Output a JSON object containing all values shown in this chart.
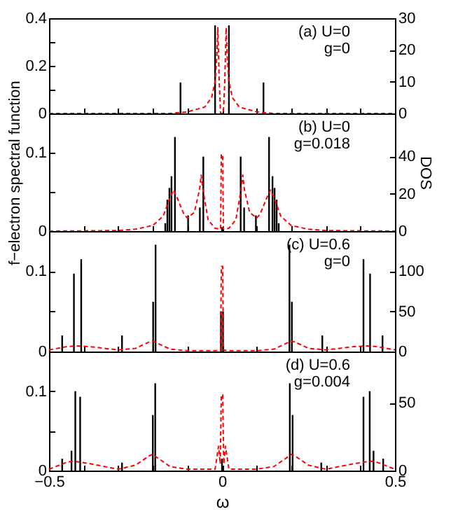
{
  "chart_data": [
    {
      "type": "bar",
      "annotations": [
        "(a) U=0",
        "g=0"
      ],
      "xlim": [
        -0.5,
        0.5
      ],
      "xticks": [
        {
          "value": -0.5,
          "label": null
        },
        {
          "value": -0.4,
          "label": null
        },
        {
          "value": -0.3,
          "label": null
        },
        {
          "value": -0.2,
          "label": null
        },
        {
          "value": -0.1,
          "label": null
        },
        {
          "value": 0,
          "label": null
        },
        {
          "value": 0.1,
          "label": null
        },
        {
          "value": 0.2,
          "label": null
        },
        {
          "value": 0.3,
          "label": null
        },
        {
          "value": 0.4,
          "label": null
        },
        {
          "value": 0.5,
          "label": null
        }
      ],
      "ylim": [
        0,
        0.4
      ],
      "yticks": [
        0,
        {
          "value": 0.1,
          "label": null
        },
        0.2,
        {
          "value": 0.3,
          "label": null
        },
        0.4
      ],
      "y2lim": [
        0,
        30
      ],
      "y2ticks": [
        0,
        10,
        20,
        30
      ],
      "tick_labels": "y",
      "grid": false,
      "series": [
        {
          "type": "bar",
          "color": "#000000",
          "x": [
            -0.12,
            -0.02,
            0.02,
            0.12
          ],
          "values": [
            0.13,
            0.37,
            0.37,
            0.13
          ]
        },
        {
          "type": "line",
          "axis": "y2",
          "color": "#ff0000",
          "line_style": "dashed",
          "x": [
            -0.5,
            -0.15,
            -0.1,
            -0.05,
            -0.03,
            -0.02,
            -0.015,
            -0.012,
            -0.008,
            -0.004,
            0,
            0.004,
            0.008,
            0.012,
            0.015,
            0.02,
            0.03,
            0.05,
            0.1,
            0.15,
            0.5
          ],
          "values": [
            0,
            0,
            0.5,
            2,
            5,
            10,
            18,
            27,
            10,
            0,
            0,
            0,
            10,
            27,
            18,
            10,
            5,
            2,
            0.5,
            0,
            0
          ]
        }
      ]
    },
    {
      "type": "bar",
      "annotations": [
        "(b) U=0",
        "g=0.018"
      ],
      "ylabel": "f−electron spectral function",
      "y2label": "DOS",
      "xlim": [
        -0.5,
        0.5
      ],
      "xticks": [
        {
          "value": -0.5,
          "label": null
        },
        {
          "value": -0.4,
          "label": null
        },
        {
          "value": -0.3,
          "label": null
        },
        {
          "value": -0.2,
          "label": null
        },
        {
          "value": -0.1,
          "label": null
        },
        {
          "value": 0,
          "label": null
        },
        {
          "value": 0.1,
          "label": null
        },
        {
          "value": 0.2,
          "label": null
        },
        {
          "value": 0.3,
          "label": null
        },
        {
          "value": 0.4,
          "label": null
        },
        {
          "value": 0.5,
          "label": null
        }
      ],
      "ylim": [
        0,
        0.15
      ],
      "yticks": [
        0,
        {
          "value": 0.05,
          "label": null
        },
        0.1
      ],
      "y2lim": [
        0,
        63
      ],
      "y2ticks": [
        0,
        20,
        40
      ],
      "tick_labels": "y",
      "grid": false,
      "series": [
        {
          "type": "bar",
          "color": "#000000",
          "x": [
            -0.164,
            -0.158,
            -0.152,
            -0.146,
            -0.136,
            -0.098,
            -0.064,
            -0.054,
            0,
            0.054,
            0.064,
            0.098,
            0.136,
            0.146,
            0.152,
            0.158,
            0.164
          ],
          "values": [
            0.01,
            0.04,
            0.055,
            0.07,
            0.12,
            0.02,
            0.03,
            0.095,
            0.005,
            0.095,
            0.03,
            0.02,
            0.12,
            0.07,
            0.055,
            0.04,
            0.01
          ]
        },
        {
          "type": "line",
          "axis": "y2",
          "color": "#ff0000",
          "line_style": "dashed",
          "x": [
            -0.5,
            -0.3,
            -0.25,
            -0.2,
            -0.17,
            -0.15,
            -0.14,
            -0.13,
            -0.11,
            -0.1,
            -0.08,
            -0.065,
            -0.06,
            -0.055,
            -0.04,
            -0.02,
            -0.004,
            -0.002,
            0.002,
            0.004,
            0.02,
            0.04,
            0.055,
            0.06,
            0.065,
            0.08,
            0.1,
            0.11,
            0.13,
            0.14,
            0.15,
            0.17,
            0.2,
            0.25,
            0.3,
            0.5
          ],
          "values": [
            0,
            0.3,
            1,
            3,
            8,
            18,
            22,
            18,
            9,
            7,
            10,
            22,
            30,
            22,
            6,
            1.5,
            1,
            41,
            41,
            1,
            1.5,
            6,
            22,
            30,
            22,
            10,
            7,
            9,
            18,
            22,
            18,
            8,
            3,
            1,
            0.3,
            0
          ]
        }
      ]
    },
    {
      "type": "bar",
      "annotations": [
        "(c) U=0.6",
        "g=0"
      ],
      "xlim": [
        -0.5,
        0.5
      ],
      "xticks": [
        {
          "value": -0.5,
          "label": null
        },
        {
          "value": -0.4,
          "label": null
        },
        {
          "value": -0.3,
          "label": null
        },
        {
          "value": -0.2,
          "label": null
        },
        {
          "value": -0.1,
          "label": null
        },
        {
          "value": 0,
          "label": null
        },
        {
          "value": 0.1,
          "label": null
        },
        {
          "value": 0.2,
          "label": null
        },
        {
          "value": 0.3,
          "label": null
        },
        {
          "value": 0.4,
          "label": null
        },
        {
          "value": 0.5,
          "label": null
        }
      ],
      "ylim": [
        0,
        0.15
      ],
      "yticks": [
        0,
        {
          "value": 0.05,
          "label": null
        },
        0.1
      ],
      "y2lim": [
        0,
        150
      ],
      "y2ticks": [
        0,
        50,
        100
      ],
      "tick_labels": "y",
      "grid": false,
      "series": [
        {
          "type": "bar",
          "color": "#000000",
          "x": [
            -0.462,
            -0.428,
            -0.407,
            -0.289,
            -0.199,
            -0.192,
            -0.003,
            0.003,
            0.195,
            0.202,
            0.29,
            0.409,
            0.428,
            0.464
          ],
          "values": [
            0.02,
            0.097,
            0.115,
            0.02,
            0.062,
            0.133,
            0.05,
            0.05,
            0.133,
            0.062,
            0.02,
            0.115,
            0.097,
            0.02
          ]
        },
        {
          "type": "line",
          "axis": "y2",
          "color": "#ff0000",
          "line_style": "dashed",
          "x": [
            -0.5,
            -0.45,
            -0.42,
            -0.38,
            -0.3,
            -0.25,
            -0.21,
            -0.2,
            -0.19,
            -0.15,
            -0.1,
            -0.02,
            -0.004,
            -0.002,
            0.002,
            0.004,
            0.02,
            0.1,
            0.15,
            0.19,
            0.2,
            0.21,
            0.25,
            0.3,
            0.38,
            0.42,
            0.45,
            0.5
          ],
          "values": [
            2,
            6,
            7,
            6,
            2,
            4,
            12,
            13,
            11,
            3,
            1,
            1,
            2,
            106,
            106,
            2,
            1,
            1,
            3,
            11,
            13,
            12,
            4,
            2,
            6,
            7,
            6,
            2
          ]
        }
      ]
    },
    {
      "type": "bar",
      "annotations": [
        "(d) U=0.6",
        "g=0.004"
      ],
      "xlabel": "ω",
      "xlim": [
        -0.5,
        0.5
      ],
      "xticks": [
        {
          "value": -0.5,
          "label": "−0.5"
        },
        {
          "value": -0.4,
          "label": null
        },
        {
          "value": -0.3,
          "label": null
        },
        {
          "value": -0.2,
          "label": null
        },
        {
          "value": -0.1,
          "label": null
        },
        0,
        {
          "value": 0.1,
          "label": null
        },
        {
          "value": 0.2,
          "label": null
        },
        {
          "value": 0.3,
          "label": null
        },
        {
          "value": 0.4,
          "label": null
        },
        0.5
      ],
      "ylim": [
        0,
        0.15
      ],
      "yticks": [
        0,
        {
          "value": 0.05,
          "label": null
        },
        0.1
      ],
      "y2lim": [
        0,
        88
      ],
      "y2ticks": [
        0,
        50
      ],
      "grid": false,
      "series": [
        {
          "type": "bar",
          "color": "#000000",
          "x": [
            -0.462,
            -0.435,
            -0.424,
            -0.41,
            -0.289,
            -0.2,
            -0.193,
            0,
            0.196,
            0.204,
            0.287,
            0.409,
            0.427,
            0.438,
            0.466
          ],
          "values": [
            0.015,
            0.025,
            0.1,
            0.093,
            0.01,
            0.07,
            0.11,
            0.015,
            0.11,
            0.07,
            0.01,
            0.093,
            0.1,
            0.025,
            0.015
          ]
        },
        {
          "type": "line",
          "axis": "y2",
          "color": "#ff0000",
          "line_style": "dashed",
          "x": [
            -0.5,
            -0.45,
            -0.43,
            -0.38,
            -0.3,
            -0.25,
            -0.21,
            -0.2,
            -0.19,
            -0.15,
            -0.1,
            -0.02,
            -0.01,
            -0.005,
            -0.002,
            0.002,
            0.005,
            0.01,
            0.02,
            0.1,
            0.15,
            0.19,
            0.2,
            0.21,
            0.25,
            0.3,
            0.38,
            0.43,
            0.45,
            0.5
          ],
          "values": [
            1,
            6,
            7,
            5,
            1,
            4,
            11,
            12,
            10,
            3,
            1,
            1,
            18,
            5,
            56,
            56,
            5,
            18,
            1,
            1,
            3,
            10,
            12,
            11,
            4,
            1,
            5,
            7,
            6,
            1
          ]
        }
      ]
    }
  ]
}
